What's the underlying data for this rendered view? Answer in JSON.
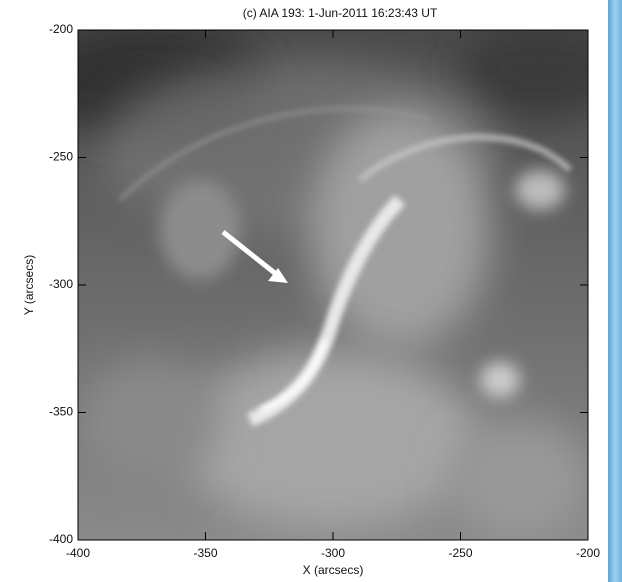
{
  "chart_data": {
    "type": "image",
    "title": "(c) AIA 193:  1-Jun-2011 16:23:43 UT",
    "x_label": "X (arcsecs)",
    "y_label": "Y (arcsecs)",
    "xlim": [
      -400,
      -200
    ],
    "xticks": [
      -400,
      -350,
      -300,
      -250,
      -200
    ],
    "ylim": [
      -400,
      -200
    ],
    "yticks": [
      -400,
      -350,
      -300,
      -250,
      -200
    ]
  }
}
